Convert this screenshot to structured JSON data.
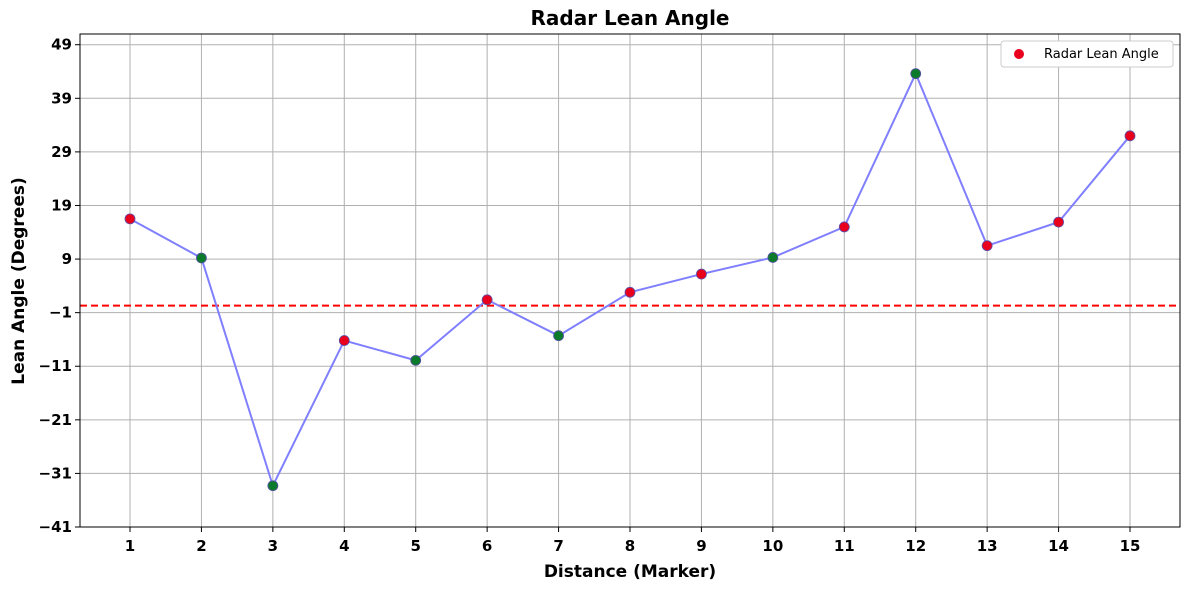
{
  "chart_data": {
    "type": "scatter",
    "title": "Radar Lean Angle",
    "xlabel": "Distance (Marker)",
    "ylabel": "Lean Angle (Degrees)",
    "x": [
      1,
      2,
      3,
      4,
      5,
      6,
      7,
      8,
      9,
      10,
      11,
      12,
      13,
      14,
      15
    ],
    "xlim": [
      0.3,
      15.7
    ],
    "ylim": [
      -41,
      51
    ],
    "yticks": [
      -41,
      -31,
      -21,
      -11,
      -1,
      9,
      19,
      29,
      39,
      49
    ],
    "reference_line": {
      "y": 0.3,
      "color": "#ff0000",
      "style": "dashed"
    },
    "series": [
      {
        "name": "Radar Lean Angle",
        "values": [
          16.5,
          9.2,
          -33.3,
          -6.2,
          -9.9,
          1.4,
          -5.3,
          2.8,
          6.2,
          9.3,
          15.0,
          43.6,
          11.5,
          15.9,
          32.0
        ],
        "marker_colors": [
          "red",
          "green",
          "green",
          "red",
          "green",
          "red",
          "green",
          "red",
          "red",
          "green",
          "red",
          "green",
          "red",
          "red",
          "red"
        ],
        "line_color": "#7f7fff"
      }
    ],
    "colors": {
      "red": "#e8001c",
      "green": "#0b7a2a",
      "grid": "#b0b0b0"
    },
    "grid": true,
    "legend": "top-right"
  }
}
